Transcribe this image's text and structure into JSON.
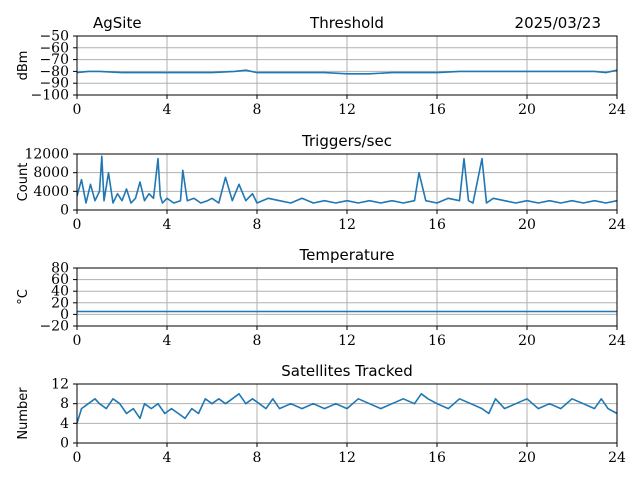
{
  "header": {
    "site": "AgSite",
    "date": "2025/03/23"
  },
  "colors": {
    "series": "#1f77b4",
    "grid": "#b0b0b0"
  },
  "chart_data": [
    {
      "type": "line",
      "title": "Threshold",
      "ylabel": "dBm",
      "xlim": [
        0,
        24
      ],
      "ylim": [
        -100,
        -50
      ],
      "xticks": [
        0,
        4,
        8,
        12,
        16,
        20,
        24
      ],
      "yticks": [
        -100,
        -90,
        -80,
        -70,
        -60,
        -50
      ],
      "yticklabels": [
        "−100",
        "−90",
        "−80",
        "−70",
        "−60",
        "−50"
      ],
      "grid": true,
      "x": [
        0,
        0.5,
        1,
        2,
        3,
        4,
        5,
        6,
        7,
        7.5,
        8,
        9,
        10,
        11,
        12,
        13,
        14,
        15,
        16,
        17,
        17.5,
        18,
        19,
        20,
        21,
        22,
        23,
        23.5,
        24
      ],
      "values": [
        -81,
        -80,
        -80,
        -81,
        -81,
        -81,
        -81,
        -81,
        -80,
        -79,
        -81,
        -81,
        -81,
        -81,
        -82,
        -82,
        -81,
        -81,
        -81,
        -80,
        -80,
        -80,
        -80,
        -80,
        -80,
        -80,
        -80,
        -81,
        -79
      ]
    },
    {
      "type": "line",
      "title": "Triggers/sec",
      "ylabel": "Count",
      "xlim": [
        0,
        24
      ],
      "ylim": [
        0,
        12000
      ],
      "xticks": [
        0,
        4,
        8,
        12,
        16,
        20,
        24
      ],
      "yticks": [
        0,
        4000,
        8000,
        12000
      ],
      "yticklabels": [
        "0",
        "4000",
        "8000",
        "12000"
      ],
      "grid": true,
      "x": [
        0,
        0.2,
        0.4,
        0.6,
        0.8,
        1.0,
        1.1,
        1.2,
        1.4,
        1.6,
        1.8,
        2.0,
        2.2,
        2.4,
        2.6,
        2.8,
        3.0,
        3.2,
        3.4,
        3.6,
        3.7,
        3.8,
        4.0,
        4.3,
        4.6,
        4.7,
        4.9,
        5.2,
        5.5,
        5.8,
        6.0,
        6.3,
        6.6,
        6.9,
        7.2,
        7.5,
        7.8,
        8.0,
        8.5,
        9.0,
        9.5,
        10,
        10.5,
        11,
        11.5,
        12,
        12.5,
        13,
        13.5,
        14,
        14.5,
        15,
        15.2,
        15.5,
        16,
        16.5,
        17,
        17.2,
        17.4,
        17.6,
        18,
        18.2,
        18.5,
        19,
        19.5,
        20,
        20.5,
        21,
        21.5,
        22,
        22.5,
        23,
        23.5,
        24
      ],
      "values": [
        3000,
        6500,
        1500,
        5500,
        2000,
        4000,
        11500,
        2000,
        8000,
        1500,
        3500,
        2000,
        4500,
        1500,
        2500,
        6000,
        2000,
        3500,
        2500,
        11000,
        3000,
        1500,
        2500,
        1500,
        2000,
        8500,
        2000,
        2500,
        1500,
        2000,
        2500,
        1500,
        7000,
        2000,
        5500,
        2000,
        3500,
        1500,
        2500,
        2000,
        1500,
        2500,
        1500,
        2000,
        1500,
        2000,
        1500,
        2000,
        1500,
        2000,
        1500,
        2000,
        8000,
        2000,
        1500,
        2500,
        2000,
        11000,
        2000,
        1500,
        11000,
        1500,
        2500,
        2000,
        1500,
        2000,
        1500,
        2000,
        1500,
        2000,
        1500,
        2000,
        1500,
        2000
      ]
    },
    {
      "type": "line",
      "title": "Temperature",
      "ylabel": "°C",
      "xlim": [
        0,
        24
      ],
      "ylim": [
        -20,
        80
      ],
      "xticks": [
        0,
        4,
        8,
        12,
        16,
        20,
        24
      ],
      "yticks": [
        -20,
        0,
        20,
        40,
        60,
        80
      ],
      "yticklabels": [
        "−20",
        "0",
        "20",
        "40",
        "60",
        "80"
      ],
      "grid": true,
      "x": [
        0,
        24
      ],
      "values": [
        5,
        5
      ]
    },
    {
      "type": "line",
      "title": "Satellites Tracked",
      "ylabel": "Number",
      "xlim": [
        0,
        24
      ],
      "ylim": [
        0,
        12
      ],
      "xticks": [
        0,
        4,
        8,
        12,
        16,
        20,
        24
      ],
      "yticks": [
        0,
        4,
        8,
        12
      ],
      "yticklabels": [
        "0",
        "4",
        "8",
        "12"
      ],
      "grid": true,
      "x": [
        0,
        0.2,
        0.5,
        0.8,
        1.0,
        1.3,
        1.6,
        1.9,
        2.2,
        2.5,
        2.8,
        3.0,
        3.3,
        3.6,
        3.9,
        4.2,
        4.5,
        4.8,
        5.1,
        5.4,
        5.7,
        6.0,
        6.3,
        6.6,
        6.9,
        7.2,
        7.5,
        7.8,
        8.1,
        8.4,
        8.7,
        9.0,
        9.5,
        10,
        10.5,
        11,
        11.5,
        12,
        12.5,
        13,
        13.5,
        14,
        14.5,
        15,
        15.3,
        15.6,
        16,
        16.5,
        17,
        17.5,
        18,
        18.3,
        18.6,
        19,
        19.5,
        20,
        20.5,
        21,
        21.5,
        22,
        22.5,
        23,
        23.3,
        23.6,
        24
      ],
      "values": [
        4,
        7,
        8,
        9,
        8,
        7,
        9,
        8,
        6,
        7,
        5,
        8,
        7,
        8,
        6,
        7,
        6,
        5,
        7,
        6,
        9,
        8,
        9,
        8,
        9,
        10,
        8,
        9,
        8,
        7,
        9,
        7,
        8,
        7,
        8,
        7,
        8,
        7,
        9,
        8,
        7,
        8,
        9,
        8,
        10,
        9,
        8,
        7,
        9,
        8,
        7,
        6,
        9,
        7,
        8,
        9,
        7,
        8,
        7,
        9,
        8,
        7,
        9,
        7,
        6
      ]
    }
  ]
}
